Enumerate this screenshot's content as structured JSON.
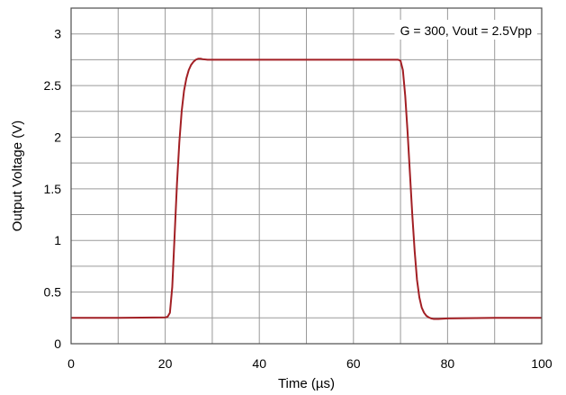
{
  "chart_data": {
    "type": "line",
    "annotation": "G = 300, Vout = 2.5Vpp",
    "xlabel": "Time (µs)",
    "ylabel": "Output Voltage (V)",
    "xlim": [
      0,
      100
    ],
    "ylim": [
      0,
      3.25
    ],
    "x_ticks": [
      "0",
      "20",
      "40",
      "60",
      "80",
      "100"
    ],
    "y_ticks": [
      "0",
      "0.5",
      "1",
      "1.5",
      "2",
      "2.5",
      "3"
    ],
    "grid": true,
    "legend": "none",
    "series": [
      {
        "color": "#a21f24",
        "x": [
          0,
          10,
          20,
          20.5,
          21,
          21.5,
          22,
          22.5,
          23,
          23.5,
          24,
          24.5,
          25,
          25.5,
          26,
          26.5,
          27,
          27.5,
          28,
          29,
          30,
          40,
          50,
          60,
          69.5,
          70,
          70.5,
          71,
          71.5,
          72,
          72.5,
          73,
          73.5,
          74,
          74.5,
          75,
          75.5,
          76,
          76.5,
          77,
          78,
          80,
          90,
          100
        ],
        "y": [
          0.25,
          0.25,
          0.255,
          0.26,
          0.3,
          0.55,
          1.05,
          1.55,
          1.95,
          2.25,
          2.45,
          2.57,
          2.65,
          2.7,
          2.73,
          2.75,
          2.76,
          2.76,
          2.755,
          2.75,
          2.75,
          2.75,
          2.75,
          2.75,
          2.75,
          2.74,
          2.65,
          2.4,
          2.05,
          1.65,
          1.25,
          0.9,
          0.62,
          0.45,
          0.35,
          0.3,
          0.27,
          0.255,
          0.245,
          0.24,
          0.24,
          0.245,
          0.25,
          0.25
        ]
      }
    ]
  }
}
